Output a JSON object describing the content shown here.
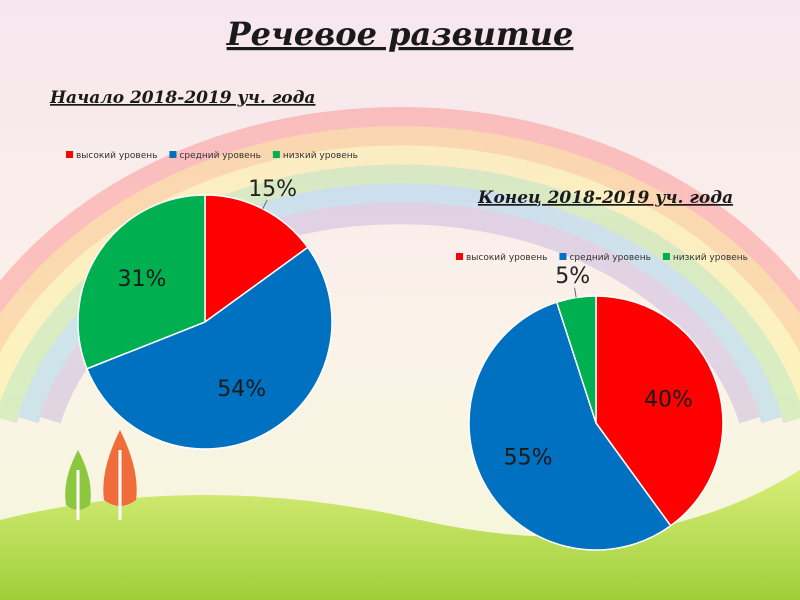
{
  "title": "Речевое развитие",
  "chart_data": [
    {
      "type": "pie",
      "title": "Начало 2018-2019 уч. года",
      "categories": [
        "высокий уровень",
        "средний уровень",
        "низкий уровень"
      ],
      "values": [
        15,
        54,
        31
      ],
      "value_labels": [
        "15%",
        "54%",
        "31%"
      ],
      "colors": [
        "#ff0000",
        "#0070c0",
        "#00b050"
      ]
    },
    {
      "type": "pie",
      "title": "Конец 2018-2019 уч. года",
      "categories": [
        "высокий уровень",
        "средний уровень",
        "низкий уровень"
      ],
      "values": [
        40,
        55,
        5
      ],
      "value_labels": [
        "40%",
        "55%",
        "5%"
      ],
      "colors": [
        "#ff0000",
        "#0070c0",
        "#00b050"
      ]
    }
  ]
}
